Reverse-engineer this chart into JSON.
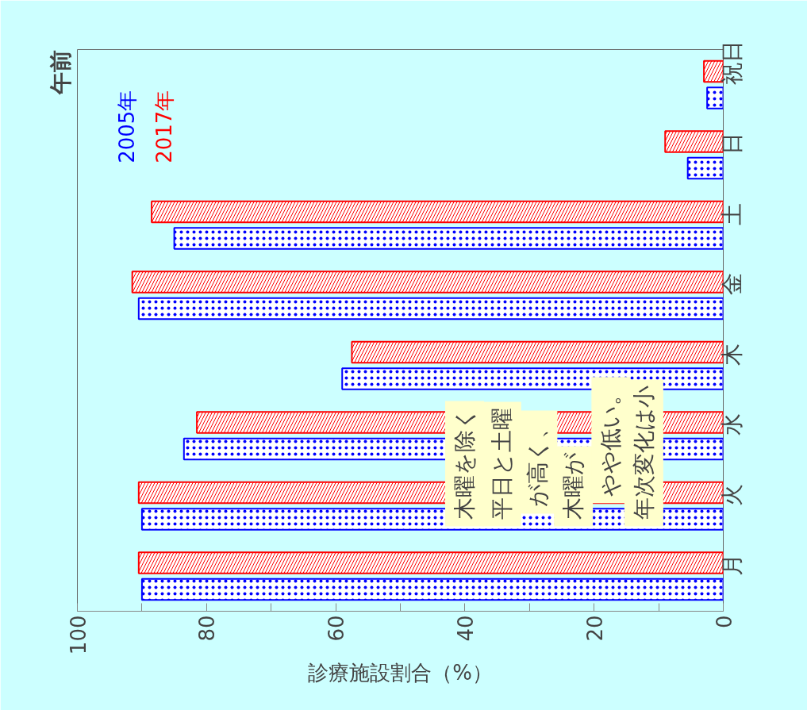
{
  "chart_data": {
    "type": "bar",
    "orientation": "horizontal",
    "title": "午前",
    "xlabel": "診療施設割合（%）",
    "categories": [
      "祝日",
      "日",
      "土",
      "金",
      "木",
      "水",
      "火",
      "月"
    ],
    "series": [
      {
        "name": "2005年",
        "color": "#0000ff",
        "values": [
          2.5,
          5.5,
          85,
          90.5,
          59,
          83.5,
          90,
          90
        ]
      },
      {
        "name": "2017年",
        "color": "#ff0000",
        "values": [
          3,
          9,
          88.5,
          91.5,
          57.5,
          81.5,
          90.5,
          90.5
        ]
      }
    ],
    "xlim": [
      100,
      0
    ],
    "xticks": [
      0,
      {
        "value": 10,
        "label": null
      },
      20,
      {
        "value": 30,
        "label": null
      },
      40,
      {
        "value": 50,
        "label": null
      },
      60,
      {
        "value": 70,
        "label": null
      },
      80,
      {
        "value": 90,
        "label": null
      },
      100
    ],
    "legend": "top left",
    "grid": false,
    "annotations": [
      "木曜を除く",
      "平日と土曜",
      "が高く、",
      "木曜が",
      "やや低い。",
      "年次変化は小"
    ]
  }
}
